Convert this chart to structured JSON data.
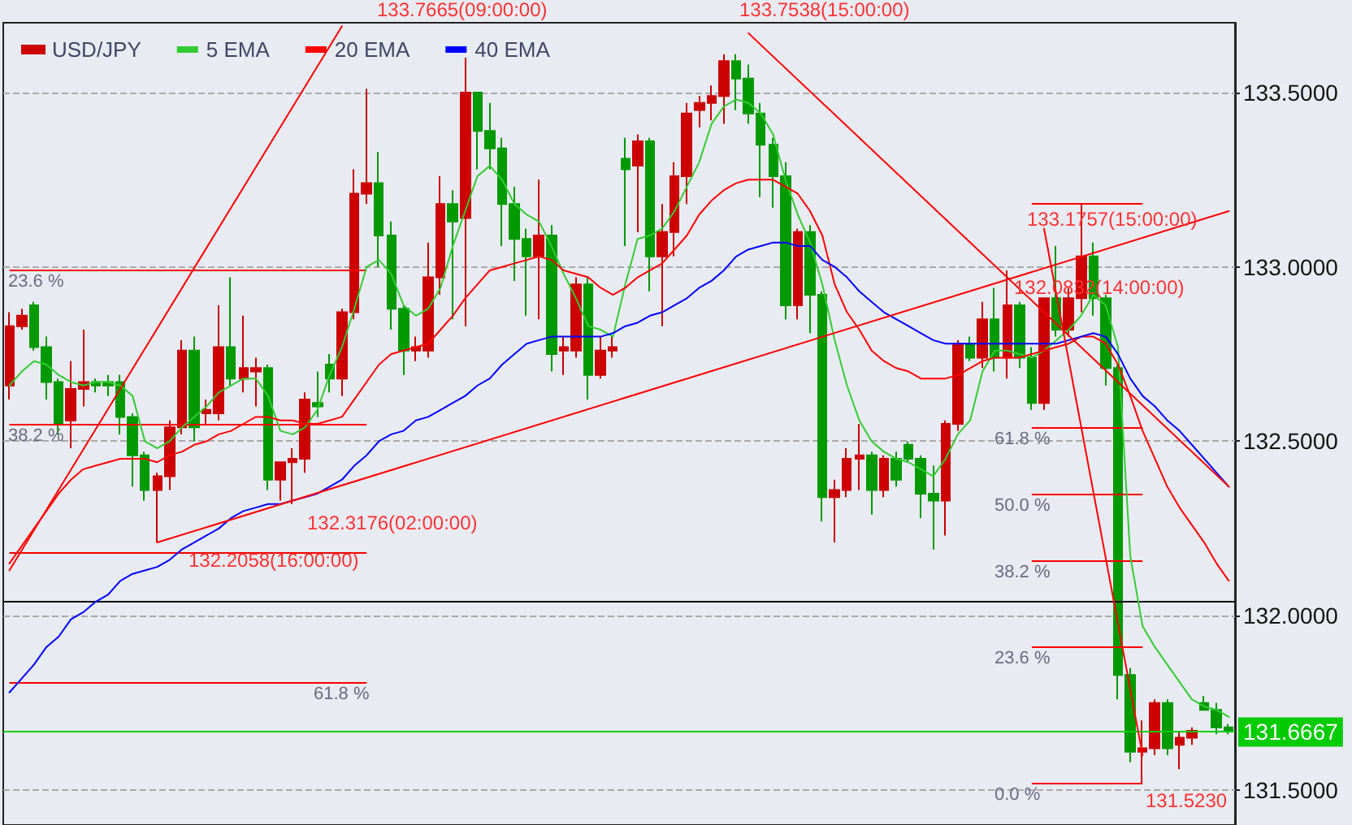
{
  "chart_data": {
    "type": "candlestick",
    "legend": "top left",
    "marker": "none",
    "line_style": "solid",
    "grid": "y",
    "tick_labels": "y",
    "categories": [
      null,
      null,
      null,
      null,
      null,
      null,
      null,
      null,
      null,
      null,
      null,
      null,
      null,
      null,
      null,
      null,
      null,
      null,
      null,
      null,
      null,
      null,
      null,
      null,
      null,
      null,
      null,
      null,
      null,
      null,
      null,
      null,
      null,
      null,
      null,
      null,
      null,
      null,
      null,
      null,
      null,
      null,
      null,
      null,
      null,
      null,
      null,
      null,
      null,
      null,
      null,
      null,
      null,
      null,
      null,
      null,
      null,
      null,
      null,
      null,
      null,
      null,
      null,
      null,
      null,
      null,
      null,
      null,
      null,
      null,
      null,
      null,
      null,
      null,
      null,
      null,
      null,
      null,
      null,
      null,
      null,
      null,
      null,
      null,
      null,
      null,
      null,
      null,
      null,
      null,
      null,
      null,
      null,
      null,
      null,
      null,
      null,
      null,
      null,
      null
    ],
    "ylim": [
      131.4,
      133.7
    ],
    "yticks": [
      {
        "value": 131.5,
        "label": "131.5000"
      },
      {
        "value": 132,
        "label": "132.0000"
      },
      {
        "value": 132.5,
        "label": "132.5000"
      },
      {
        "value": 133,
        "label": "133.0000"
      },
      {
        "value": 133.5,
        "label": "133.5000"
      }
    ],
    "series": [
      {
        "name": "USD/JPY",
        "colors": [
          "#cc0000",
          "#cc0000",
          "#009900",
          "#009900",
          "#009900",
          "#cc0000",
          "#cc0000",
          "#009900",
          "#009900",
          "#009900",
          "#009900",
          "#009900",
          "#cc0000",
          "#cc0000",
          "#cc0000",
          "#009900",
          "#cc0000",
          "#cc0000",
          "#009900",
          "#cc0000",
          "#cc0000",
          "#009900",
          "#cc0000",
          "#cc0000",
          "#cc0000",
          "#009900",
          "#009900",
          "#cc0000",
          "#cc0000",
          "#cc0000",
          "#009900",
          "#009900",
          "#009900",
          "#cc0000",
          "#cc0000",
          "#cc0000",
          "#009900",
          "#cc0000",
          "#009900",
          "#009900",
          "#009900",
          "#009900",
          "#009900",
          "#cc0000",
          "#009900",
          "#cc0000",
          "#cc0000",
          "#009900",
          "#cc0000",
          "#cc0000",
          "#009900",
          "#cc0000",
          "#009900",
          "#cc0000",
          "#cc0000",
          "#cc0000",
          "#cc0000",
          "#cc0000",
          "#cc0000",
          "#009900",
          "#009900",
          "#009900",
          "#009900",
          "#009900",
          "#cc0000",
          "#009900",
          "#009900",
          "#cc0000",
          "#cc0000",
          "#cc0000",
          "#009900",
          "#cc0000",
          "#009900",
          "#009900",
          "#009900",
          "#009900",
          "#cc0000",
          "#cc0000",
          "#009900",
          "#cc0000",
          "#009900",
          "#cc0000",
          "#009900",
          "#009900",
          "#cc0000",
          "#009900",
          "#cc0000",
          "#cc0000",
          "#009900",
          "#009900",
          "#009900",
          "#009900",
          "#cc0000",
          "#cc0000",
          "#009900",
          "#cc0000",
          "#cc0000",
          "#009900",
          "#009900",
          "#009900"
        ],
        "ohlc": [
          [
            132.66,
            132.87,
            132.62,
            132.83
          ],
          [
            132.83,
            132.88,
            132.82,
            132.86
          ],
          [
            132.89,
            132.9,
            132.76,
            132.77
          ],
          [
            132.77,
            132.8,
            132.62,
            132.67
          ],
          [
            132.67,
            132.68,
            132.52,
            132.55
          ],
          [
            132.56,
            132.73,
            132.48,
            132.65
          ],
          [
            132.65,
            132.82,
            132.6,
            132.67
          ],
          [
            132.67,
            132.68,
            132.64,
            132.66
          ],
          [
            132.67,
            132.69,
            132.63,
            132.66
          ],
          [
            132.67,
            132.69,
            132.52,
            132.57
          ],
          [
            132.57,
            132.58,
            132.37,
            132.46
          ],
          [
            132.46,
            132.47,
            132.33,
            132.36
          ],
          [
            132.36,
            132.41,
            132.21,
            132.4
          ],
          [
            132.4,
            132.56,
            132.36,
            132.54
          ],
          [
            132.54,
            132.79,
            132.52,
            132.76
          ],
          [
            132.76,
            132.8,
            132.5,
            132.54
          ],
          [
            132.58,
            132.62,
            132.55,
            132.59
          ],
          [
            132.58,
            132.89,
            132.56,
            132.77
          ],
          [
            132.77,
            132.97,
            132.66,
            132.68
          ],
          [
            132.68,
            132.86,
            132.64,
            132.71
          ],
          [
            132.7,
            132.74,
            132.6,
            132.71
          ],
          [
            132.71,
            132.72,
            132.36,
            132.39
          ],
          [
            132.39,
            132.44,
            132.33,
            132.44
          ],
          [
            132.44,
            132.48,
            132.32,
            132.45
          ],
          [
            132.45,
            132.64,
            132.41,
            132.62
          ],
          [
            132.61,
            132.7,
            132.57,
            132.6
          ],
          [
            132.72,
            132.75,
            132.64,
            132.68
          ],
          [
            132.68,
            132.88,
            132.63,
            132.87
          ],
          [
            132.87,
            133.28,
            132.85,
            133.21
          ],
          [
            133.21,
            133.51,
            133.18,
            133.24
          ],
          [
            133.24,
            133.33,
            133,
            133.09
          ],
          [
            133.09,
            133.13,
            132.82,
            132.88
          ],
          [
            132.88,
            132.89,
            132.69,
            132.76
          ],
          [
            132.76,
            132.8,
            132.73,
            132.77
          ],
          [
            132.76,
            133.07,
            132.74,
            132.97
          ],
          [
            132.97,
            133.26,
            132.92,
            133.18
          ],
          [
            133.18,
            133.22,
            132.85,
            133.13
          ],
          [
            133.14,
            133.6,
            132.83,
            133.5
          ],
          [
            133.5,
            133.5,
            133.28,
            133.39
          ],
          [
            133.39,
            133.47,
            133.28,
            133.34
          ],
          [
            133.34,
            133.37,
            133.06,
            133.18
          ],
          [
            133.18,
            133.23,
            132.96,
            133.08
          ],
          [
            133.08,
            133.11,
            132.86,
            133.03
          ],
          [
            133.03,
            133.25,
            132.85,
            133.09
          ],
          [
            133.09,
            133.12,
            132.7,
            132.75
          ],
          [
            132.76,
            132.8,
            132.69,
            132.77
          ],
          [
            132.76,
            132.97,
            132.74,
            132.95
          ],
          [
            132.95,
            132.97,
            132.62,
            132.69
          ],
          [
            132.69,
            132.8,
            132.68,
            132.76
          ],
          [
            132.76,
            132.8,
            132.74,
            132.77
          ],
          [
            133.31,
            133.37,
            133.06,
            133.28
          ],
          [
            133.29,
            133.38,
            133.1,
            133.36
          ],
          [
            133.36,
            133.37,
            132.93,
            133.03
          ],
          [
            133.03,
            133.18,
            132.83,
            133.1
          ],
          [
            133.1,
            133.3,
            133.03,
            133.26
          ],
          [
            133.26,
            133.47,
            133.18,
            133.44
          ],
          [
            133.45,
            133.49,
            133.4,
            133.47
          ],
          [
            133.47,
            133.52,
            133.42,
            133.49
          ],
          [
            133.49,
            133.61,
            133.41,
            133.59
          ],
          [
            133.59,
            133.61,
            133.45,
            133.54
          ],
          [
            133.54,
            133.58,
            133.41,
            133.44
          ],
          [
            133.44,
            133.47,
            133.2,
            133.35
          ],
          [
            133.35,
            133.37,
            133.17,
            133.26
          ],
          [
            133.26,
            133.3,
            132.85,
            132.89
          ],
          [
            132.89,
            133.11,
            132.85,
            133.1
          ],
          [
            133.1,
            133.12,
            132.81,
            132.92
          ],
          [
            132.92,
            132.93,
            132.27,
            132.34
          ],
          [
            132.34,
            132.39,
            132.21,
            132.36
          ],
          [
            132.36,
            132.48,
            132.34,
            132.45
          ],
          [
            132.45,
            132.55,
            132.36,
            132.46
          ],
          [
            132.46,
            132.47,
            132.29,
            132.36
          ],
          [
            132.36,
            132.46,
            132.34,
            132.45
          ],
          [
            132.45,
            132.47,
            132.37,
            132.39
          ],
          [
            132.49,
            132.5,
            132.44,
            132.45
          ],
          [
            132.45,
            132.46,
            132.28,
            132.35
          ],
          [
            132.35,
            132.43,
            132.19,
            132.33
          ],
          [
            132.33,
            132.56,
            132.23,
            132.55
          ],
          [
            132.55,
            132.79,
            132.53,
            132.78
          ],
          [
            132.78,
            132.8,
            132.73,
            132.74
          ],
          [
            132.74,
            132.9,
            132.71,
            132.85
          ],
          [
            132.85,
            132.94,
            132.7,
            132.74
          ],
          [
            132.74,
            132.99,
            132.68,
            132.89
          ],
          [
            132.89,
            132.9,
            132.71,
            132.74
          ],
          [
            132.74,
            132.77,
            132.59,
            132.61
          ],
          [
            132.61,
            132.91,
            132.59,
            132.91
          ],
          [
            132.91,
            133.06,
            132.8,
            132.82
          ],
          [
            132.82,
            132.94,
            132.8,
            132.91
          ],
          [
            132.91,
            133.18,
            132.87,
            133.03
          ],
          [
            133.03,
            133.07,
            132.86,
            132.91
          ],
          [
            132.91,
            132.92,
            132.66,
            132.71
          ],
          [
            132.71,
            132.72,
            131.76,
            131.83
          ],
          [
            131.83,
            131.85,
            131.58,
            131.61
          ],
          [
            131.61,
            131.7,
            131.52,
            131.62
          ],
          [
            131.62,
            131.76,
            131.6,
            131.75
          ],
          [
            131.75,
            131.76,
            131.6,
            131.62
          ],
          [
            131.63,
            131.67,
            131.56,
            131.65
          ],
          [
            131.65,
            131.68,
            131.63,
            131.67
          ],
          [
            131.75,
            131.77,
            131.73,
            131.73
          ],
          [
            131.73,
            131.75,
            131.66,
            131.68
          ],
          [
            131.68,
            131.69,
            131.66,
            131.67
          ]
        ]
      },
      {
        "name": "5 EMA",
        "type": "line",
        "color": "#33cc33",
        "values": [
          132.66,
          132.7,
          132.73,
          132.72,
          132.69,
          132.67,
          132.66,
          132.67,
          132.67,
          132.66,
          132.63,
          132.5,
          132.48,
          132.5,
          132.54,
          132.57,
          132.6,
          132.64,
          132.66,
          132.68,
          132.68,
          132.63,
          132.53,
          132.52,
          132.54,
          132.59,
          132.69,
          132.77,
          132.88,
          133,
          133.02,
          132.98,
          132.89,
          132.86,
          132.88,
          132.94,
          133.06,
          133.16,
          133.26,
          133.29,
          133.25,
          133.18,
          133.15,
          133.13,
          133.06,
          132.98,
          132.91,
          132.83,
          132.82,
          132.8,
          132.95,
          133.08,
          133.09,
          133.11,
          133.16,
          133.23,
          133.3,
          133.41,
          133.46,
          133.48,
          133.47,
          133.44,
          133.38,
          133.25,
          133.15,
          133.07,
          132.95,
          132.79,
          132.66,
          132.56,
          132.5,
          132.47,
          132.45,
          132.44,
          132.42,
          132.4,
          132.45,
          132.52,
          132.56,
          132.7,
          132.76,
          132.76,
          132.75,
          132.74,
          132.76,
          132.79,
          132.82,
          132.86,
          132.92,
          132.89,
          132.77,
          132.17,
          131.97,
          131.91,
          131.86,
          131.81,
          131.76,
          131.74,
          131.73,
          131.71
        ]
      },
      {
        "name": "20 EMA",
        "type": "line",
        "color": "#ff0000",
        "values": [
          132.15,
          132.2,
          132.25,
          132.3,
          132.35,
          132.39,
          132.42,
          132.43,
          132.44,
          132.45,
          132.45,
          132.45,
          132.44,
          132.46,
          132.47,
          132.49,
          132.5,
          132.52,
          132.53,
          132.55,
          132.57,
          132.57,
          132.56,
          132.56,
          132.55,
          132.55,
          132.56,
          132.57,
          132.62,
          132.67,
          132.72,
          132.75,
          132.76,
          132.77,
          132.78,
          132.82,
          132.86,
          132.91,
          132.95,
          132.99,
          133,
          133.01,
          133.02,
          133.03,
          133.02,
          132.99,
          132.98,
          132.97,
          132.94,
          132.92,
          132.94,
          132.97,
          132.99,
          133.01,
          133.05,
          133.09,
          133.15,
          133.19,
          133.22,
          133.24,
          133.25,
          133.25,
          133.25,
          133.23,
          133.21,
          133.16,
          133.09,
          132.95,
          132.87,
          132.82,
          132.76,
          132.73,
          132.71,
          132.7,
          132.68,
          132.68,
          132.68,
          132.69,
          132.71,
          132.73,
          132.74,
          132.74,
          132.74,
          132.75,
          132.76,
          132.77,
          132.78,
          132.8,
          132.8,
          132.78,
          132.72,
          132.63,
          132.53,
          132.45,
          132.37,
          132.31,
          132.26,
          132.21,
          132.15,
          132.1
        ]
      },
      {
        "name": "40 EMA",
        "type": "line",
        "color": "#0000ff",
        "values": [
          131.78,
          131.82,
          131.86,
          131.91,
          131.94,
          131.99,
          132.01,
          132.04,
          132.06,
          132.1,
          132.12,
          132.13,
          132.14,
          132.16,
          132.19,
          132.21,
          132.23,
          132.25,
          132.28,
          132.3,
          132.31,
          132.32,
          132.32,
          132.33,
          132.34,
          132.35,
          132.37,
          132.39,
          132.43,
          132.46,
          132.5,
          132.52,
          132.53,
          132.56,
          132.57,
          132.59,
          132.61,
          132.63,
          132.66,
          132.68,
          132.72,
          132.75,
          132.78,
          132.79,
          132.8,
          132.8,
          132.8,
          132.8,
          132.8,
          132.81,
          132.83,
          132.84,
          132.86,
          132.87,
          132.89,
          132.91,
          132.94,
          132.96,
          132.99,
          133.03,
          133.05,
          133.06,
          133.07,
          133.07,
          133.06,
          133.06,
          133.02,
          133,
          132.97,
          132.93,
          132.9,
          132.87,
          132.85,
          132.83,
          132.81,
          132.79,
          132.78,
          132.78,
          132.78,
          132.78,
          132.78,
          132.78,
          132.78,
          132.78,
          132.78,
          132.78,
          132.79,
          132.8,
          132.81,
          132.8,
          132.75,
          132.68,
          132.63,
          132.6,
          132.56,
          132.53,
          132.49,
          132.45,
          132.41,
          132.37
        ]
      },
      {
        "type": "line",
        "color": "#ff0000",
        "values": [
          132.13,
          null,
          null,
          null,
          null,
          null,
          null,
          null,
          null,
          null,
          null,
          null,
          null,
          null,
          null,
          null,
          null,
          null,
          null,
          null,
          null,
          null,
          null,
          null,
          null,
          null,
          null,
          133.69,
          null,
          null,
          null,
          null,
          null,
          null,
          null,
          null,
          null,
          null,
          null,
          null,
          null,
          null,
          null,
          null,
          null,
          null,
          null,
          null,
          null,
          null,
          null,
          null,
          null,
          null,
          null,
          null,
          null,
          null,
          null,
          null,
          null,
          null,
          null,
          null,
          null,
          null,
          null,
          null,
          null,
          null,
          null,
          null,
          null,
          null,
          null,
          null,
          null,
          null,
          null,
          null,
          null,
          null,
          null,
          null,
          null,
          null,
          null,
          null,
          null,
          null,
          null,
          null,
          null,
          null,
          null,
          null,
          null,
          null,
          null,
          null
        ]
      },
      {
        "type": "line",
        "color": "#ff0000",
        "values": [
          null,
          null,
          null,
          null,
          null,
          null,
          null,
          null,
          null,
          null,
          null,
          null,
          132.21,
          null,
          null,
          null,
          null,
          null,
          null,
          null,
          null,
          null,
          null,
          null,
          null,
          null,
          null,
          null,
          null,
          null,
          null,
          null,
          null,
          null,
          null,
          null,
          null,
          null,
          null,
          null,
          null,
          null,
          null,
          null,
          null,
          null,
          null,
          null,
          null,
          null,
          null,
          null,
          null,
          null,
          null,
          null,
          null,
          null,
          null,
          null,
          null,
          null,
          null,
          null,
          null,
          null,
          null,
          null,
          null,
          null,
          null,
          null,
          null,
          null,
          null,
          null,
          null,
          null,
          null,
          null,
          null,
          null,
          null,
          null,
          null,
          null,
          null,
          null,
          null,
          null,
          null,
          null,
          null,
          null,
          null,
          null,
          null,
          null,
          null,
          133.16
        ]
      },
      {
        "type": "line",
        "color": "#ff0000",
        "values": [
          null,
          null,
          null,
          null,
          null,
          null,
          null,
          null,
          null,
          null,
          null,
          null,
          null,
          null,
          null,
          null,
          null,
          null,
          null,
          null,
          null,
          null,
          null,
          null,
          null,
          null,
          null,
          null,
          null,
          null,
          null,
          null,
          null,
          null,
          null,
          null,
          null,
          null,
          null,
          null,
          null,
          null,
          null,
          null,
          null,
          null,
          null,
          null,
          null,
          null,
          null,
          null,
          null,
          null,
          null,
          null,
          null,
          null,
          null,
          null,
          133.67,
          null,
          null,
          null,
          null,
          null,
          null,
          null,
          null,
          null,
          null,
          null,
          null,
          null,
          null,
          null,
          null,
          null,
          null,
          null,
          null,
          null,
          null,
          null,
          null,
          null,
          null,
          null,
          null,
          null,
          null,
          null,
          null,
          null,
          null,
          null,
          null,
          null,
          null,
          132.37
        ]
      },
      {
        "type": "line",
        "color": "#ff0000",
        "values": [
          null,
          null,
          null,
          null,
          null,
          null,
          null,
          null,
          null,
          null,
          null,
          null,
          null,
          null,
          null,
          null,
          null,
          null,
          null,
          null,
          null,
          null,
          null,
          null,
          null,
          null,
          null,
          null,
          null,
          null,
          null,
          null,
          null,
          null,
          null,
          null,
          null,
          null,
          null,
          null,
          null,
          null,
          null,
          null,
          null,
          null,
          null,
          null,
          null,
          null,
          null,
          null,
          null,
          null,
          null,
          null,
          null,
          null,
          null,
          null,
          null,
          null,
          null,
          null,
          null,
          null,
          null,
          null,
          null,
          null,
          null,
          null,
          null,
          null,
          null,
          null,
          null,
          null,
          null,
          null,
          null,
          null,
          null,
          null,
          133.11,
          null,
          null,
          null,
          null,
          null,
          null,
          null,
          131.6,
          null,
          null,
          null,
          null,
          null,
          null,
          null
        ]
      }
    ],
    "ref_lines": [
      {
        "axis": "y",
        "value": 133.18,
        "color": "#ff0000"
      },
      {
        "axis": "y",
        "value": 132.54,
        "color": "#ff0000"
      },
      {
        "axis": "y",
        "value": 132.35,
        "color": "#ff0000"
      },
      {
        "axis": "y",
        "value": 132.16,
        "color": "#ff0000"
      },
      {
        "axis": "y",
        "value": 131.91,
        "color": "#ff0000"
      },
      {
        "axis": "y",
        "value": 131.52,
        "color": "#ff0000"
      },
      {
        "axis": "y",
        "value": 132.99,
        "color": "#ff0000"
      },
      {
        "axis": "y",
        "value": 132.55,
        "color": "#ff0000"
      },
      {
        "axis": "y",
        "value": 132.18,
        "color": "#ff0000"
      },
      {
        "axis": "y",
        "value": 131.81,
        "color": "#ff0000"
      },
      {
        "axis": "y",
        "value": 132.04,
        "color": "#000000"
      },
      {
        "axis": "y",
        "value": 131.6667,
        "label": "131.6667",
        "color": "#00cc00"
      }
    ],
    "annotations": [
      "133.7665(09:00:00)",
      "133.7538(15:00:00)",
      "132.3176(02:00:00)",
      "132.2058(16:00:00)",
      "133.1757(15:00:00)",
      "132.0832(14:00:00)",
      "131.5230",
      "61.8 %",
      "50.0 %",
      "38.2 %",
      "23.6 %",
      "0.0 %",
      "23.6 %",
      "38.2 %",
      "61.8 %"
    ]
  }
}
